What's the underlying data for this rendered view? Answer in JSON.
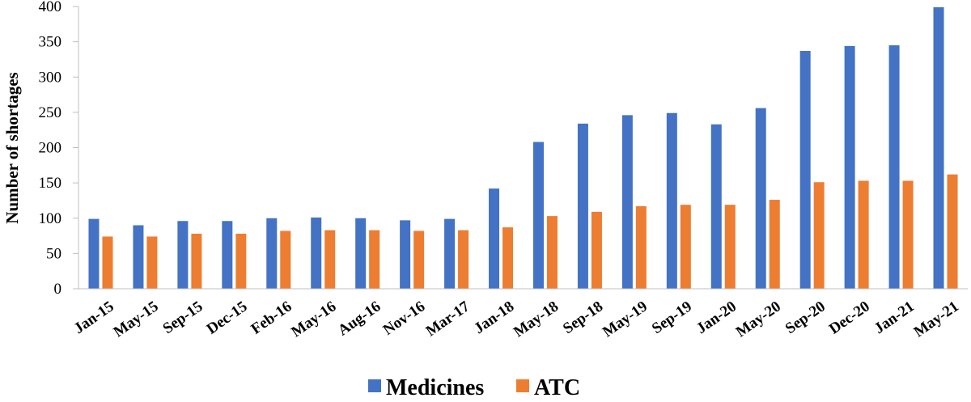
{
  "chart_data": {
    "type": "bar",
    "ylabel": "Number of shortages",
    "xlabel": "",
    "ylim": [
      0,
      400
    ],
    "yticks": [
      0,
      50,
      100,
      150,
      200,
      250,
      300,
      350,
      400
    ],
    "grid": false,
    "legend_position": "bottom",
    "categories": [
      "Jan-15",
      "May-15",
      "Sep-15",
      "Dec-15",
      "Feb-16",
      "May-16",
      "Aug-16",
      "Nov-16",
      "Mar-17",
      "Jan-18",
      "May-18",
      "Sep-18",
      "May-19",
      "Sep-19",
      "Jan-20",
      "May-20",
      "Sep-20",
      "Dec-20",
      "Jan-21",
      "May-21"
    ],
    "series": [
      {
        "name": "Medicines",
        "color": "#4472C4",
        "values": [
          99,
          90,
          96,
          96,
          100,
          101,
          100,
          97,
          99,
          142,
          208,
          234,
          246,
          249,
          233,
          256,
          337,
          344,
          345,
          399
        ]
      },
      {
        "name": "ATC",
        "color": "#ED7D31",
        "values": [
          74,
          74,
          78,
          78,
          82,
          83,
          83,
          82,
          83,
          87,
          103,
          109,
          117,
          119,
          119,
          126,
          151,
          153,
          153,
          162
        ]
      }
    ]
  }
}
